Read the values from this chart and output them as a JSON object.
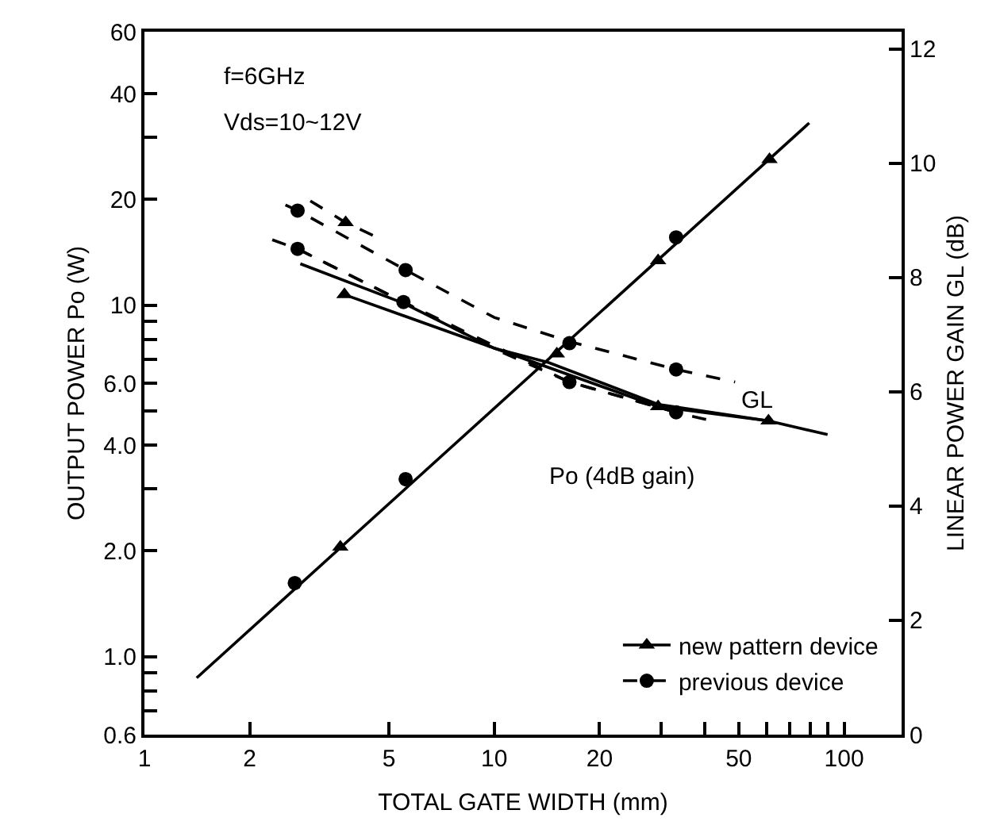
{
  "chart_data": {
    "type": "line",
    "xlabel": "TOTAL GATE WIDTH (mm)",
    "ylabel": "OUTPUT POWER Po (W)",
    "y2label": "LINEAR POWER GAIN GL (dB)",
    "log": "xy",
    "legend": "bottom right",
    "xlim": [
      1,
      146
    ],
    "ylim": [
      0.6,
      60
    ],
    "y2lim": [
      0,
      12.3
    ],
    "xticks": [
      1,
      2,
      5,
      10,
      20,
      {
        "value": 30,
        "label": null
      },
      {
        "value": 40,
        "label": null
      },
      50,
      {
        "value": 60,
        "label": null
      },
      {
        "value": 70,
        "label": null
      },
      {
        "value": 80,
        "label": null
      },
      {
        "value": 90,
        "label": null
      },
      100
    ],
    "yticks": [
      0.6,
      {
        "value": 0.7,
        "label": null
      },
      {
        "value": 0.8,
        "label": null
      },
      {
        "value": 0.9,
        "label": null
      },
      {
        "value": 1,
        "label": "1.0"
      },
      {
        "value": 2,
        "label": "2.0"
      },
      {
        "value": 3,
        "label": null
      },
      {
        "value": 4,
        "label": "4.0"
      },
      {
        "value": 5,
        "label": null
      },
      {
        "value": 6,
        "label": "6.0"
      },
      {
        "value": 7,
        "label": null
      },
      {
        "value": 8,
        "label": null
      },
      {
        "value": 9,
        "label": null
      },
      10,
      20,
      {
        "value": 30,
        "label": null
      },
      40,
      60
    ],
    "y2ticks": [
      0,
      2,
      4,
      6,
      8,
      10,
      12
    ],
    "annotations": [
      "f=6GHz",
      "Vds=10~12V",
      "GL",
      "Po (4dB gain)"
    ],
    "series": [
      {
        "name": "new pattern device",
        "color": "#000000",
        "marker": "triangle",
        "line_style": "solid",
        "axis": "y2",
        "x": [
          3.73,
          29.4,
          60.8
        ],
        "values": [
          7.7,
          5.74,
          5.49
        ]
      },
      {
        "name": "previous device",
        "color": "#000000",
        "marker": "circle",
        "line_style": "dashed",
        "axis": "y2",
        "x": [
          2.74,
          5.5,
          16.4,
          33.1
        ],
        "values": [
          8.5,
          7.57,
          6.17,
          5.64
        ]
      },
      {
        "color": "#000000",
        "line_style": "solid",
        "axis": "y2",
        "x": [
          2.79,
          5.5,
          10,
          14.3,
          29.4,
          60.8,
          89.7
        ],
        "values": [
          8.24,
          7.55,
          6.76,
          6.51,
          5.78,
          5.49,
          5.25
        ]
      },
      {
        "color": "#000000",
        "line_style": "dashed",
        "axis": "y2",
        "x": [
          2.32,
          2.74,
          5.5,
          10,
          16.4,
          33.1,
          41.8
        ],
        "values": [
          8.66,
          8.5,
          7.57,
          6.75,
          6.17,
          5.64,
          5.49
        ]
      },
      {
        "color": "#000000",
        "line_style": "dashed",
        "axis": "y2",
        "x": [
          2.53,
          2.74,
          5.58,
          10,
          16.4,
          33.1,
          48.8
        ],
        "values": [
          9.27,
          9.17,
          8.13,
          7.3,
          6.88,
          6.39,
          6.17
        ]
      },
      {
        "color": "#000000",
        "line_style": "dashed",
        "axis": "y2",
        "x": [
          2.98,
          3.76,
          4.67
        ],
        "values": [
          9.34,
          8.96,
          8.69
        ]
      },
      {
        "type": "scatter",
        "color": "#000000",
        "marker": "circle",
        "axis": "y2",
        "x": [
          2.74,
          5.58,
          33.1
        ],
        "values": [
          9.17,
          8.13,
          6.39
        ]
      },
      {
        "type": "scatter",
        "color": "#000000",
        "marker": "triangle",
        "axis": "y2",
        "x": [
          3.76
        ],
        "values": [
          8.96
        ]
      },
      {
        "type": "scatter",
        "color": "#000000",
        "marker": "triangle",
        "x": [
          3.63,
          15.1,
          29.4,
          61.2
        ],
        "values": [
          2.05,
          7.27,
          13.4,
          26.0
        ]
      },
      {
        "type": "scatter",
        "color": "#000000",
        "marker": "circle",
        "x": [
          2.69,
          5.58,
          16.4,
          33.1
        ],
        "values": [
          1.62,
          3.2,
          7.8,
          15.6
        ]
      },
      {
        "color": "#000000",
        "line_style": "solid",
        "x": [
          1.41,
          79.5
        ],
        "values": [
          0.87,
          33.0
        ]
      }
    ]
  }
}
